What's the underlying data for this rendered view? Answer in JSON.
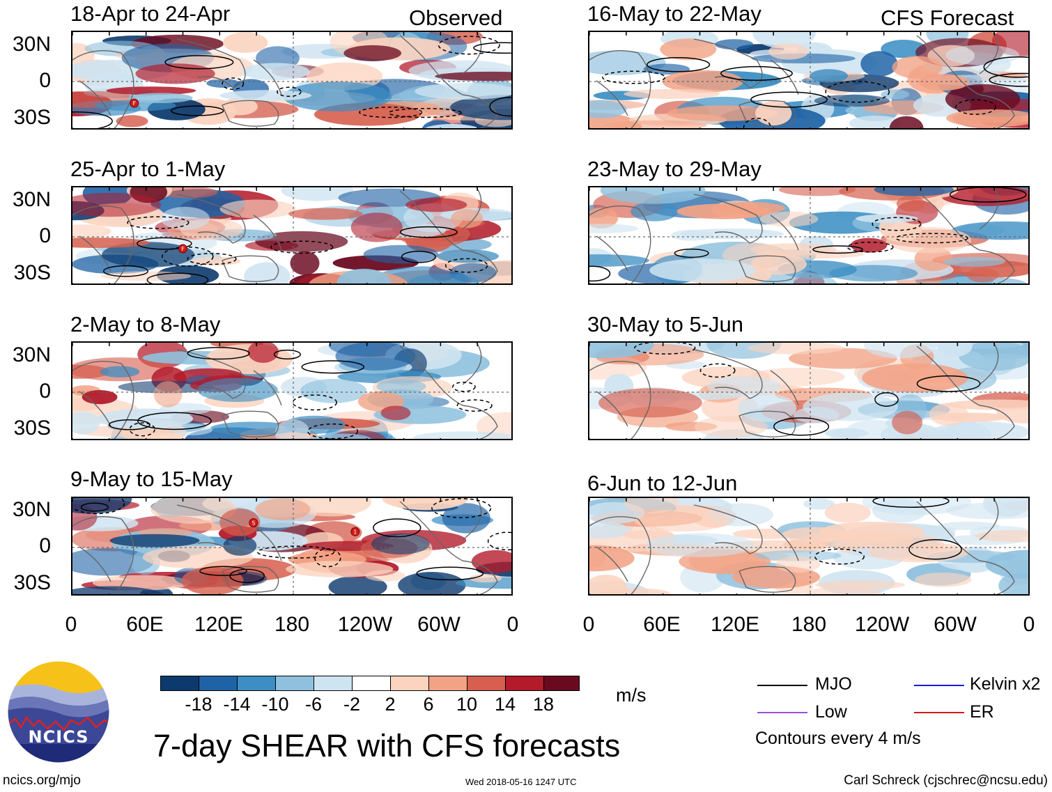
{
  "left_column": {
    "tag": "Observed",
    "panels": [
      {
        "title": "18-Apr to 24-Apr"
      },
      {
        "title": "25-Apr to 1-May"
      },
      {
        "title": "2-May to 8-May"
      },
      {
        "title": "9-May to 15-May"
      }
    ]
  },
  "right_column": {
    "tag": "CFS Forecast",
    "panels": [
      {
        "title": "16-May to 22-May"
      },
      {
        "title": "23-May to 29-May"
      },
      {
        "title": "30-May to 5-Jun"
      },
      {
        "title": "6-Jun to 12-Jun"
      }
    ]
  },
  "lat_labels": [
    "30N",
    "0",
    "30S"
  ],
  "lon_labels": [
    "0",
    "60E",
    "120E",
    "180",
    "120W",
    "60W",
    "0"
  ],
  "colorbar": {
    "unit": "m/s",
    "labels": [
      "-18",
      "-14",
      "-10",
      "-6",
      "-2",
      "2",
      "6",
      "10",
      "14",
      "18"
    ],
    "colors": [
      "#0d3a6e",
      "#1f63a6",
      "#3c8ec3",
      "#8fc1de",
      "#cfe4f1",
      "#ffffff",
      "#fbd3bf",
      "#f2a285",
      "#d65f4f",
      "#b31b2b",
      "#6a0a1f"
    ]
  },
  "legend": {
    "mjo": "MJO",
    "low": "Low",
    "kelvin": "Kelvin x2",
    "er": "ER",
    "contours": "Contours every 4 m/s",
    "mjo_color": "#000000",
    "low_color": "#9b4dd6",
    "kelvin_color": "#1a1adc",
    "er_color": "#d11a1a"
  },
  "logo_text": "NCICS",
  "main_title": "7-day SHEAR with CFS forecasts",
  "footer": {
    "url": "ncics.org/mjo",
    "timestamp": "Wed 2018-05-16 1247 UTC",
    "author": "Carl Schreck (cjschrec@ncsu.edu)"
  },
  "storm_markers": [
    {
      "panel": 0,
      "symbol": "F"
    },
    {
      "panel": 1,
      "symbol": "F"
    },
    {
      "panel": 3,
      "symbol": "S"
    },
    {
      "panel": 3,
      "symbol": "1"
    }
  ]
}
